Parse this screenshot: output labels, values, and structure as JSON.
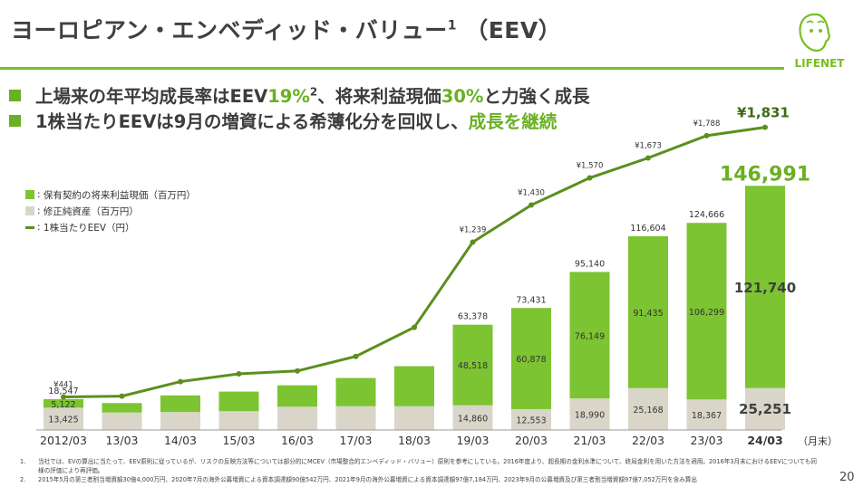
{
  "title": {
    "text": "ヨーロピアン・エンベディッド・バリュー",
    "sup": "1",
    "suffix": "（EEV）"
  },
  "logo": {
    "text": "LIFENET"
  },
  "bullets": [
    {
      "a": "上場来の年平均成長率はEEV",
      "hl1": "19%",
      "sup": "2",
      "b": "、将来利益現価",
      "hl2": "30%",
      "c": "と力強く成長"
    },
    {
      "a": "1株当たりEEVは9月の増資による希薄化分を回収し、",
      "hl1": "成長を継続"
    }
  ],
  "legend": [
    {
      "swatch": ":",
      "label": "保有契約の将来利益現価（百万円）"
    },
    {
      "swatch": ":",
      "label": "修正純資産（百万円）"
    },
    {
      "swatch": ":",
      "label": "1株当たりEEV（円）"
    }
  ],
  "footnotes": [
    {
      "num": "1.",
      "text": "当社では、EVの算出に当たって、EEV原則に従っているが、リスクの反映方法等については部分的にMCEV（市場整合的エンベディッド・バリュー）原則を参考にしている。2016年度より、超長期の金利水準について、終局金利を用いた方法を適用。2016年3月末におけるEEVについても同様の評価により再評価。"
    },
    {
      "num": "2.",
      "text": "2015年5月の第三者割当増資額30億4,000万円、2020年7月の海外公募増資による資本調達額90億542万円、2021年9月の海外公募増資による資本調達額97億7,184万円、2023年9月の公募増資及び第三者割当増資額97億7,052万円を含み算出"
    }
  ],
  "page_number": "20",
  "chart_data": {
    "type": "bar",
    "stacked": true,
    "categories": [
      "2012/03",
      "13/03",
      "14/03",
      "15/03",
      "16/03",
      "17/03",
      "18/03",
      "19/03",
      "20/03",
      "21/03",
      "22/03",
      "23/03",
      "24/03"
    ],
    "x_unit": "（月末）",
    "series": [
      {
        "name": "修正純資産（百万円）",
        "color": "#d9d6c9",
        "values": [
          13425,
          10500,
          10800,
          11300,
          14000,
          14300,
          14300,
          14860,
          12553,
          18990,
          25168,
          18367,
          25251
        ],
        "labels": [
          "13,425",
          "",
          "",
          "",
          "",
          "",
          "",
          "14,860",
          "12,553",
          "18,990",
          "25,168",
          "18,367",
          "25,251"
        ]
      },
      {
        "name": "保有契約の将来利益現価（百万円）",
        "color": "#7cc431",
        "values": [
          5122,
          5700,
          10000,
          11800,
          12900,
          17000,
          24100,
          48518,
          60878,
          76149,
          91435,
          106299,
          121740
        ],
        "labels": [
          "5,122",
          "",
          "",
          "",
          "",
          "",
          "",
          "48,518",
          "60,878",
          "76,149",
          "91,435",
          "106,299",
          "121,740"
        ]
      }
    ],
    "totals": [
      "18,547",
      "",
      "",
      "",
      "",
      "",
      "",
      "63,378",
      "73,431",
      "95,140",
      "116,604",
      "124,666",
      "146,991"
    ],
    "line": {
      "name": "1株当たりEEV（円）",
      "color": "#5b8f1e",
      "values": [
        441,
        445,
        520,
        560,
        575,
        650,
        800,
        1239,
        1430,
        1570,
        1673,
        1788,
        1831
      ],
      "labels": [
        "¥441",
        "",
        "",
        "",
        "",
        "",
        "",
        "¥1,239",
        "¥1,430",
        "¥1,570",
        "¥1,673",
        "¥1,788",
        "¥1,831"
      ]
    },
    "highlight_index": 12
  }
}
